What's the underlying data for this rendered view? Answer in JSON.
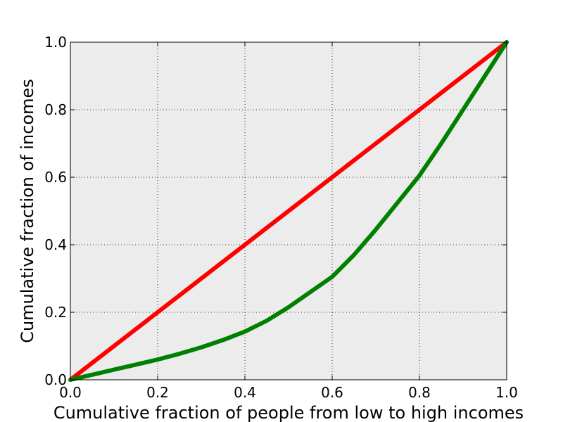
{
  "chart_data": {
    "type": "line",
    "title": "",
    "xlabel": "Cumulative fraction of people from low to high incomes",
    "ylabel": "Cumulative fraction of incomes",
    "xlim": [
      0.0,
      1.0
    ],
    "ylim": [
      0.0,
      1.0
    ],
    "x_ticks": [
      "0.0",
      "0.2",
      "0.4",
      "0.6",
      "0.8",
      "1.0"
    ],
    "y_ticks": [
      "0.0",
      "0.2",
      "0.4",
      "0.6",
      "0.8",
      "1.0"
    ],
    "grid": true,
    "plot_background": "#ececec",
    "series": [
      {
        "color": "#ff0000",
        "x": [
          0.0,
          1.0
        ],
        "y": [
          0.0,
          1.0
        ]
      },
      {
        "color": "#008000",
        "x": [
          0.0,
          0.05,
          0.1,
          0.15,
          0.2,
          0.25,
          0.3,
          0.35,
          0.4,
          0.45,
          0.5,
          0.55,
          0.6,
          0.65,
          0.7,
          0.75,
          0.8,
          0.85,
          0.9,
          0.95,
          1.0
        ],
        "y": [
          0.0,
          0.015,
          0.03,
          0.045,
          0.06,
          0.077,
          0.096,
          0.118,
          0.143,
          0.175,
          0.215,
          0.26,
          0.305,
          0.37,
          0.445,
          0.525,
          0.605,
          0.7,
          0.8,
          0.9,
          1.0
        ]
      }
    ]
  }
}
